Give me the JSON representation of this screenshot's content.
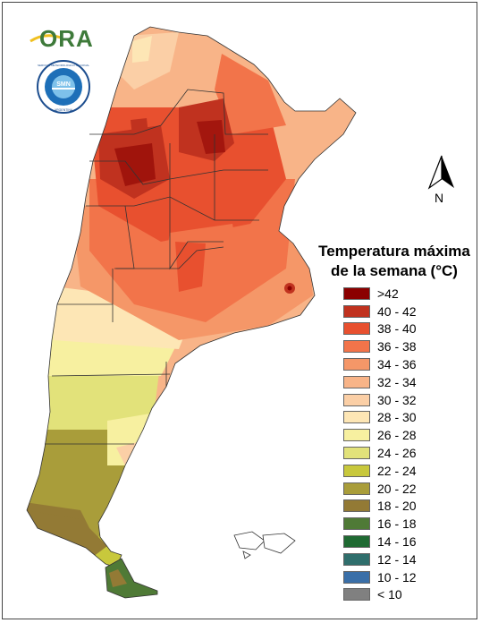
{
  "logos": {
    "ora_text": "ORA",
    "smn_ring_text": "SERVICIO METEOROLOGICO NACIONAL",
    "smn_bottom_text": "ARGENTINA",
    "smn_center_text": "SMN"
  },
  "compass": {
    "label": "N"
  },
  "legend": {
    "title_line1": "Temperatura máxima",
    "title_line2": "de la semana (°C)",
    "items": [
      {
        "label": ">42",
        "color": "#8b0000"
      },
      {
        "label": "40 - 42",
        "color": "#c0321f"
      },
      {
        "label": "38 - 40",
        "color": "#e8502f"
      },
      {
        "label": "36 - 38",
        "color": "#f2744a"
      },
      {
        "label": "34 - 36",
        "color": "#f59768"
      },
      {
        "label": "32 - 34",
        "color": "#f8b488"
      },
      {
        "label": "30 - 32",
        "color": "#fbcfa6"
      },
      {
        "label": "28 - 30",
        "color": "#fde6b5"
      },
      {
        "label": "26 - 28",
        "color": "#f7f0a0"
      },
      {
        "label": "24 - 26",
        "color": "#e2e27a"
      },
      {
        "label": "22 - 24",
        "color": "#c8c83c"
      },
      {
        "label": "20 - 22",
        "color": "#a99d3a"
      },
      {
        "label": "18 - 20",
        "color": "#937a35"
      },
      {
        "label": "16 - 18",
        "color": "#4f7a36"
      },
      {
        "label": "14 - 16",
        "color": "#1f6a32"
      },
      {
        "label": "12 - 14",
        "color": "#2f6e6c"
      },
      {
        "label": "10 - 12",
        "color": "#3a6fa8"
      },
      {
        "label": "< 10",
        "color": "#808080"
      }
    ]
  }
}
